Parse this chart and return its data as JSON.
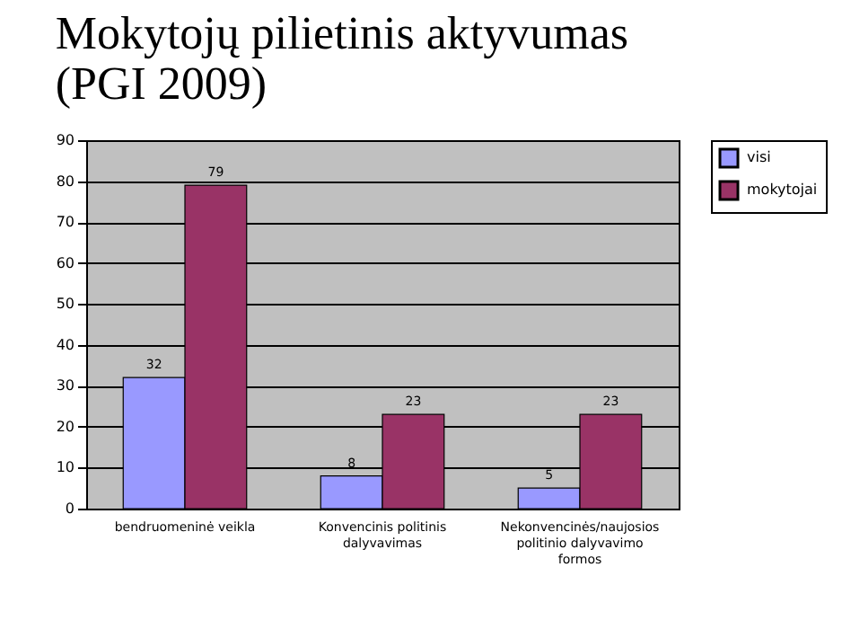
{
  "chart_data": {
    "type": "bar",
    "title": "Mokytojų pilietinis aktyvumas (PGI 2009)",
    "categories": [
      "bendruomeninė veikla",
      "Konvencinis politinis dalyvavimas",
      "Nekonvencinės/naujosios politinio dalyvavimo formos"
    ],
    "series": [
      {
        "name": "visi",
        "color": "#9999ff",
        "values": [
          32,
          8,
          5
        ]
      },
      {
        "name": "mokytojai",
        "color": "#993366",
        "values": [
          79,
          23,
          23
        ]
      }
    ],
    "ylim": [
      0,
      90
    ],
    "yticks": [
      0,
      10,
      20,
      30,
      40,
      50,
      60,
      70,
      80,
      90
    ],
    "grid": "y",
    "legend": "right",
    "data_labels": true
  }
}
